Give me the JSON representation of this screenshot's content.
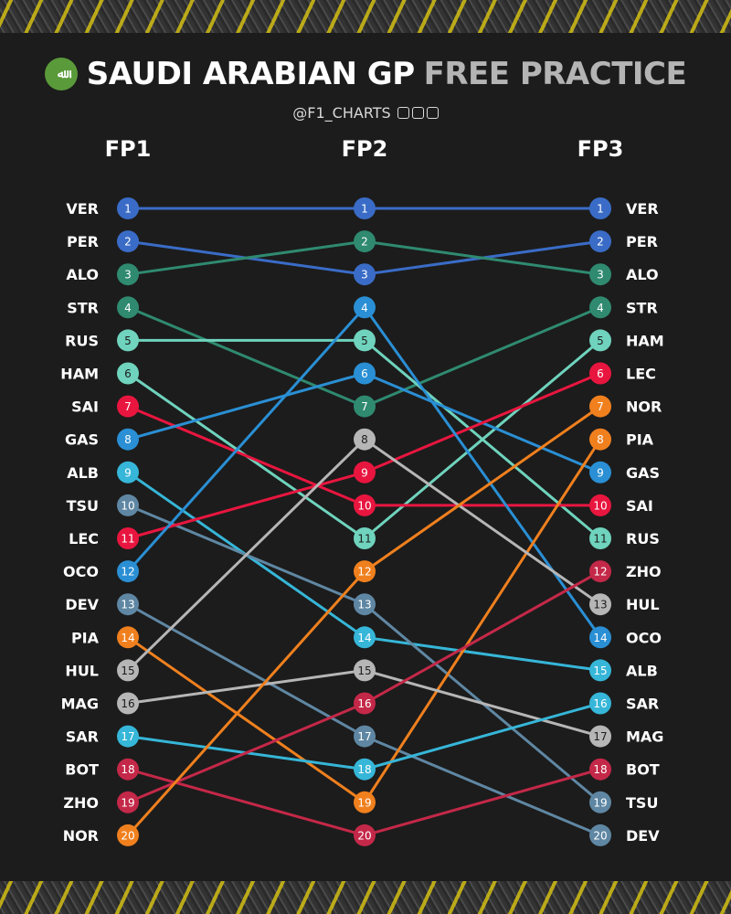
{
  "header": {
    "title_white": "SAUDI ARABIAN GP",
    "title_gray": "FREE PRACTICE",
    "handle": "@F1_CHARTS",
    "flag_text": "ﷲ"
  },
  "colors": {
    "background": "#1c1c1c",
    "VER": "#3a6cc7",
    "PER": "#3a6cc7",
    "ALO": "#2f8a70",
    "STR": "#2f8a70",
    "RUS": "#6fd3bd",
    "HAM": "#6fd3bd",
    "SAI": "#e8163f",
    "LEC": "#e8163f",
    "GAS": "#2a8fd4",
    "OCO": "#2a8fd4",
    "ALB": "#36b6d8",
    "SAR": "#36b6d8",
    "TSU": "#5f87a3",
    "DEV": "#5f87a3",
    "NOR": "#f0801e",
    "PIA": "#f0801e",
    "HUL": "#b6b6b6",
    "MAG": "#b6b6b6",
    "BOT": "#c42848",
    "ZHO": "#c42848"
  },
  "chart_data": {
    "type": "bump",
    "title": "SAUDI ARABIAN GP FREE PRACTICE",
    "sessions": [
      "FP1",
      "FP2",
      "FP3"
    ],
    "positions": [
      1,
      2,
      3,
      4,
      5,
      6,
      7,
      8,
      9,
      10,
      11,
      12,
      13,
      14,
      15,
      16,
      17,
      18,
      19,
      20
    ],
    "order": {
      "FP1": [
        "VER",
        "PER",
        "ALO",
        "STR",
        "RUS",
        "HAM",
        "SAI",
        "GAS",
        "ALB",
        "TSU",
        "LEC",
        "OCO",
        "DEV",
        "PIA",
        "HUL",
        "MAG",
        "SAR",
        "BOT",
        "ZHO",
        "NOR"
      ],
      "FP2": [
        "VER",
        "ALO",
        "PER",
        "OCO",
        "RUS",
        "GAS",
        "STR",
        "HUL",
        "LEC",
        "SAI",
        "HAM",
        "NOR",
        "TSU",
        "ALB",
        "MAG",
        "ZHO",
        "DEV",
        "SAR",
        "PIA",
        "BOT"
      ],
      "FP3": [
        "VER",
        "PER",
        "ALO",
        "STR",
        "HAM",
        "LEC",
        "NOR",
        "PIA",
        "GAS",
        "SAI",
        "RUS",
        "ZHO",
        "HUL",
        "OCO",
        "ALB",
        "SAR",
        "MAG",
        "BOT",
        "TSU",
        "DEV"
      ]
    }
  }
}
